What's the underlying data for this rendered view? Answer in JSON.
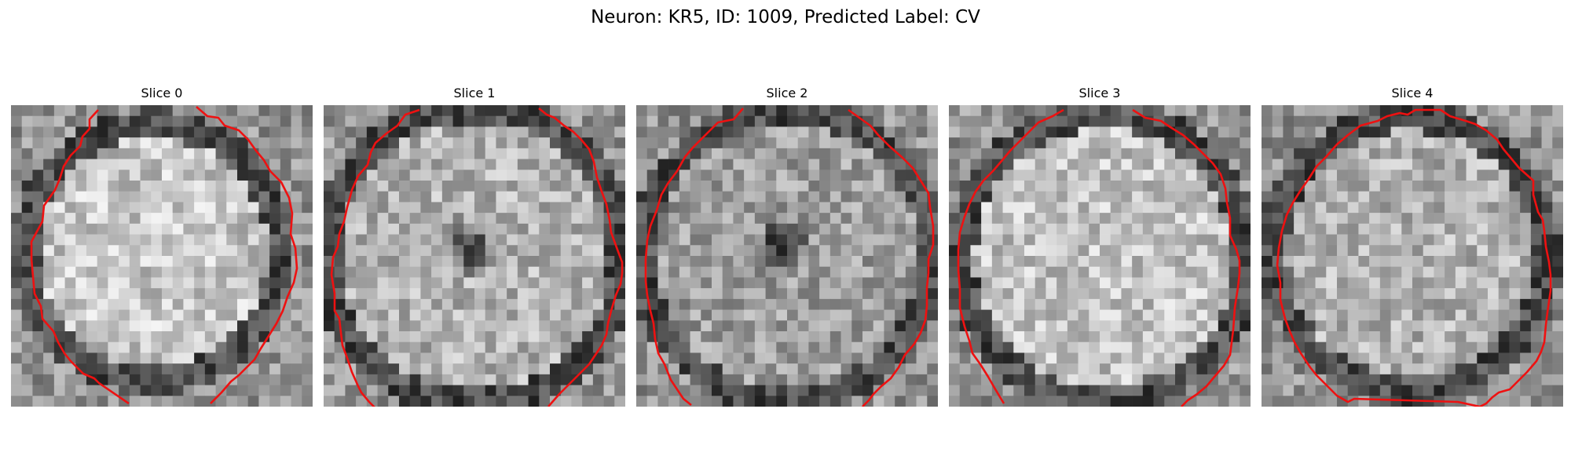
{
  "figure": {
    "title": "Neuron: KR5, ID: 1009, Predicted Label: CV"
  },
  "panels": [
    {
      "title": "Slice 0"
    },
    {
      "title": "Slice 1"
    },
    {
      "title": "Slice 2"
    },
    {
      "title": "Slice 3"
    },
    {
      "title": "Slice 4"
    }
  ],
  "style": {
    "colormap": "grayscale",
    "contour_color": "#ee1111",
    "background": "#ffffff"
  }
}
